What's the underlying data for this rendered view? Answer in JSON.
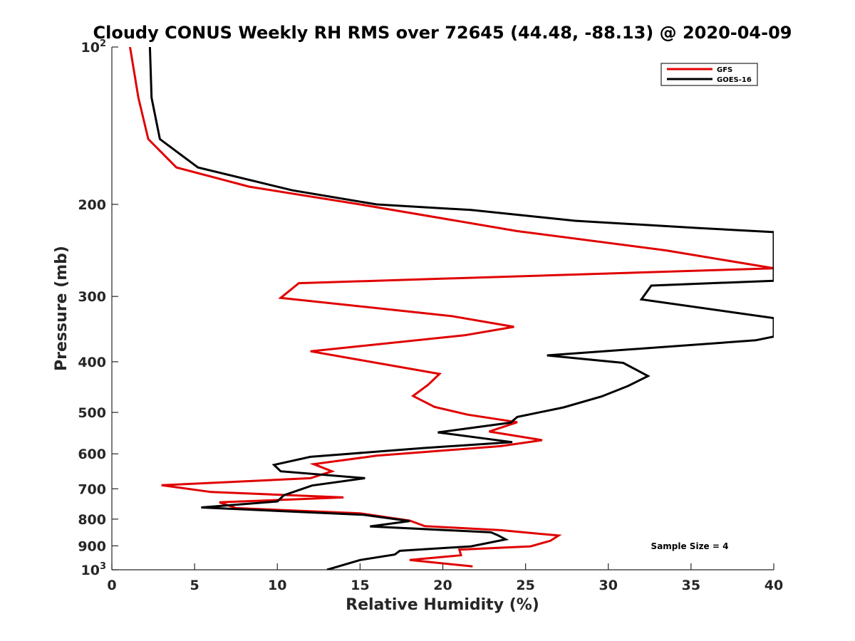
{
  "chart_data": {
    "type": "line",
    "title": "Cloudy CONUS Weekly RH RMS over 72645 (44.48, -88.13) @ 2020-04-09",
    "xlabel": "Relative Humidity (%)",
    "ylabel": "Pressure (mb)",
    "xlim": [
      0,
      40
    ],
    "ylim": [
      100,
      1000
    ],
    "y_scale": "log",
    "y_reversed": true,
    "x_ticks": [
      "0",
      "5",
      "10",
      "15",
      "20",
      "25",
      "30",
      "35",
      "40"
    ],
    "y_ticks": [
      {
        "value": 100,
        "base": "10",
        "exp": "2"
      },
      {
        "value": 200,
        "label": "200"
      },
      {
        "value": 300,
        "label": "300"
      },
      {
        "value": 400,
        "label": "400"
      },
      {
        "value": 500,
        "label": "500"
      },
      {
        "value": 600,
        "label": "600"
      },
      {
        "value": 700,
        "label": "700"
      },
      {
        "value": 800,
        "label": "800"
      },
      {
        "value": 900,
        "label": "900"
      },
      {
        "value": 1000,
        "base": "10",
        "exp": "3"
      }
    ],
    "legend_position": "top-right",
    "grid": false,
    "annotation": "Sample Size = 4",
    "series": [
      {
        "name": "GFS",
        "color": "#e00000",
        "points": [
          [
            1.1,
            100
          ],
          [
            1.6,
            125
          ],
          [
            2.2,
            150
          ],
          [
            3.9,
            170
          ],
          [
            8.3,
            185
          ],
          [
            15.0,
            200
          ],
          [
            24.5,
            225
          ],
          [
            33.5,
            245
          ],
          [
            40.0,
            265
          ],
          [
            11.3,
            283
          ],
          [
            10.2,
            302
          ],
          [
            20.5,
            327
          ],
          [
            24.3,
            343
          ],
          [
            21.3,
            356
          ],
          [
            12.0,
            382
          ],
          [
            19.8,
            422
          ],
          [
            19.1,
            443
          ],
          [
            18.2,
            465
          ],
          [
            19.5,
            488
          ],
          [
            21.5,
            505
          ],
          [
            24.5,
            522
          ],
          [
            22.8,
            544
          ],
          [
            26.0,
            565
          ],
          [
            23.5,
            580
          ],
          [
            16.0,
            605
          ],
          [
            12.2,
            628
          ],
          [
            13.3,
            648
          ],
          [
            12.0,
            668
          ],
          [
            3.0,
            689
          ],
          [
            6.0,
            710
          ],
          [
            14.0,
            727
          ],
          [
            6.5,
            743
          ],
          [
            7.5,
            762
          ],
          [
            15.0,
            780
          ],
          [
            18.0,
            805
          ],
          [
            18.9,
            825
          ],
          [
            23.5,
            840
          ],
          [
            27.0,
            860
          ],
          [
            26.5,
            880
          ],
          [
            25.3,
            902
          ],
          [
            21.0,
            915
          ],
          [
            21.1,
            938
          ],
          [
            18.0,
            958
          ],
          [
            21.8,
            985
          ]
        ]
      },
      {
        "name": "GOES-16",
        "color": "#000000",
        "points": [
          [
            2.3,
            100
          ],
          [
            2.4,
            125
          ],
          [
            2.9,
            150
          ],
          [
            5.2,
            170
          ],
          [
            10.9,
            188
          ],
          [
            16.0,
            200
          ],
          [
            21.7,
            205
          ],
          [
            28.0,
            215
          ],
          [
            35.5,
            222
          ],
          [
            40.0,
            226
          ],
          [
            40.0,
            280
          ],
          [
            32.6,
            286
          ],
          [
            32.0,
            304
          ],
          [
            40.0,
            330
          ],
          [
            40.0,
            358
          ],
          [
            38.9,
            364
          ],
          [
            26.3,
            389
          ],
          [
            30.9,
            402
          ],
          [
            32.4,
            426
          ],
          [
            31.2,
            445
          ],
          [
            29.6,
            466
          ],
          [
            27.3,
            489
          ],
          [
            24.5,
            510
          ],
          [
            24.1,
            523
          ],
          [
            19.7,
            546
          ],
          [
            24.2,
            570
          ],
          [
            18.8,
            585
          ],
          [
            12.0,
            608
          ],
          [
            9.8,
            630
          ],
          [
            10.2,
            648
          ],
          [
            15.3,
            668
          ],
          [
            12.1,
            690
          ],
          [
            10.4,
            720
          ],
          [
            10.0,
            740
          ],
          [
            5.4,
            760
          ],
          [
            15.2,
            785
          ],
          [
            18.0,
            807
          ],
          [
            15.6,
            826
          ],
          [
            22.9,
            848
          ],
          [
            23.3,
            858
          ],
          [
            23.8,
            875
          ],
          [
            21.7,
            902
          ],
          [
            17.4,
            920
          ],
          [
            17.1,
            935
          ],
          [
            15.0,
            958
          ],
          [
            13.0,
            1000
          ]
        ]
      }
    ]
  }
}
